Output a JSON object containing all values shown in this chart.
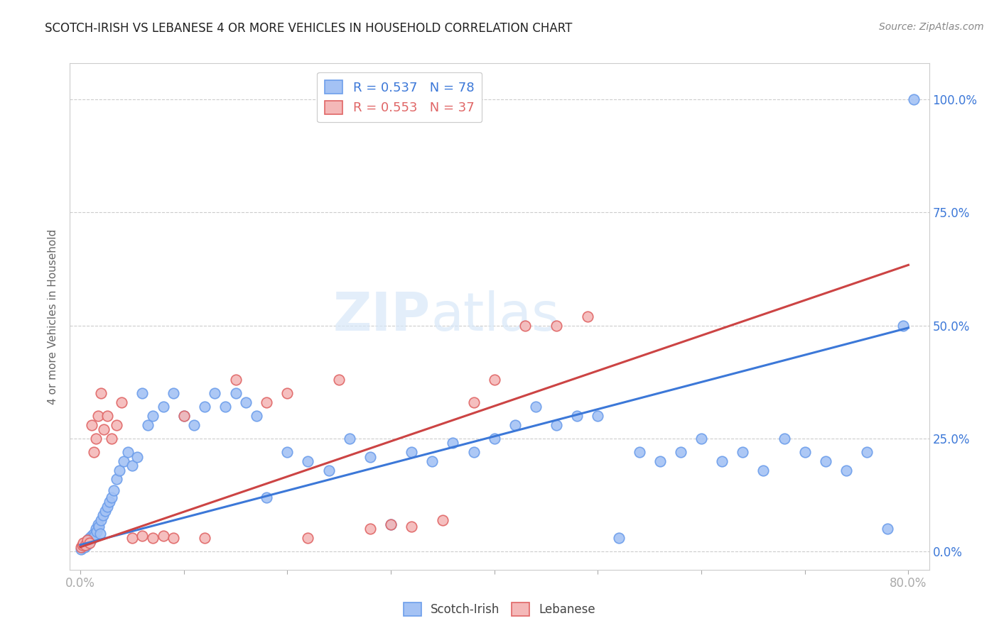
{
  "title": "SCOTCH-IRISH VS LEBANESE 4 OR MORE VEHICLES IN HOUSEHOLD CORRELATION CHART",
  "source": "Source: ZipAtlas.com",
  "ylabel": "4 or more Vehicles in Household",
  "ytick_labels": [
    "0.0%",
    "25.0%",
    "50.0%",
    "75.0%",
    "100.0%"
  ],
  "ytick_values": [
    0.0,
    25.0,
    50.0,
    75.0,
    100.0
  ],
  "xlim": [
    -1.0,
    82.0
  ],
  "ylim": [
    -4.0,
    108.0
  ],
  "scotch_irish_color": "#a4c2f4",
  "lebanese_color": "#f4b8b8",
  "scotch_irish_edge_color": "#6d9eeb",
  "lebanese_edge_color": "#e06666",
  "scotch_irish_line_color": "#3c78d8",
  "lebanese_line_color": "#cc4444",
  "right_tick_color": "#3c78d8",
  "R_scotch": "0.537",
  "N_scotch": 78,
  "R_lebanese": "0.553",
  "N_lebanese": 37,
  "legend_label_scotch": "Scotch-Irish",
  "legend_label_lebanese": "Lebanese",
  "scotch_irish_x": [
    0.1,
    0.2,
    0.3,
    0.4,
    0.5,
    0.6,
    0.7,
    0.8,
    0.9,
    1.0,
    1.1,
    1.2,
    1.3,
    1.4,
    1.5,
    1.6,
    1.7,
    1.8,
    1.9,
    2.0,
    2.2,
    2.4,
    2.6,
    2.8,
    3.0,
    3.2,
    3.5,
    3.8,
    4.2,
    4.6,
    5.0,
    5.5,
    6.0,
    6.5,
    7.0,
    8.0,
    9.0,
    10.0,
    11.0,
    12.0,
    13.0,
    14.0,
    15.0,
    16.0,
    17.0,
    18.0,
    20.0,
    22.0,
    24.0,
    26.0,
    28.0,
    30.0,
    32.0,
    34.0,
    36.0,
    38.0,
    40.0,
    42.0,
    44.0,
    46.0,
    48.0,
    50.0,
    52.0,
    54.0,
    56.0,
    58.0,
    60.0,
    62.0,
    64.0,
    66.0,
    68.0,
    70.0,
    72.0,
    74.0,
    76.0,
    78.0,
    79.5,
    80.5
  ],
  "scotch_irish_y": [
    0.5,
    1.0,
    1.5,
    1.0,
    2.0,
    1.5,
    2.5,
    2.0,
    3.0,
    2.5,
    3.5,
    3.0,
    4.0,
    3.5,
    5.0,
    4.5,
    6.0,
    5.5,
    4.0,
    7.0,
    8.0,
    9.0,
    10.0,
    11.0,
    12.0,
    13.5,
    16.0,
    18.0,
    20.0,
    22.0,
    19.0,
    21.0,
    35.0,
    28.0,
    30.0,
    32.0,
    35.0,
    30.0,
    28.0,
    32.0,
    35.0,
    32.0,
    35.0,
    33.0,
    30.0,
    12.0,
    22.0,
    20.0,
    18.0,
    25.0,
    21.0,
    6.0,
    22.0,
    20.0,
    24.0,
    22.0,
    25.0,
    28.0,
    32.0,
    28.0,
    30.0,
    30.0,
    3.0,
    22.0,
    20.0,
    22.0,
    25.0,
    20.0,
    22.0,
    18.0,
    25.0,
    22.0,
    20.0,
    18.0,
    22.0,
    5.0,
    50.0,
    100.0
  ],
  "lebanese_x": [
    0.1,
    0.2,
    0.3,
    0.5,
    0.7,
    0.9,
    1.1,
    1.3,
    1.5,
    1.7,
    2.0,
    2.3,
    2.6,
    3.0,
    3.5,
    4.0,
    5.0,
    6.0,
    7.0,
    8.0,
    9.0,
    10.0,
    12.0,
    15.0,
    18.0,
    20.0,
    22.0,
    25.0,
    28.0,
    30.0,
    32.0,
    35.0,
    38.0,
    40.0,
    43.0,
    46.0,
    49.0
  ],
  "lebanese_y": [
    1.0,
    1.5,
    2.0,
    1.5,
    2.5,
    2.0,
    28.0,
    22.0,
    25.0,
    30.0,
    35.0,
    27.0,
    30.0,
    25.0,
    28.0,
    33.0,
    3.0,
    3.5,
    3.0,
    3.5,
    3.0,
    30.0,
    3.0,
    38.0,
    33.0,
    35.0,
    3.0,
    38.0,
    5.0,
    6.0,
    5.5,
    7.0,
    33.0,
    38.0,
    50.0,
    50.0,
    52.0
  ],
  "watermark_zip": "ZIP",
  "watermark_atlas": "atlas",
  "background_color": "#ffffff",
  "grid_color": "#cccccc",
  "axis_color": "#cccccc"
}
